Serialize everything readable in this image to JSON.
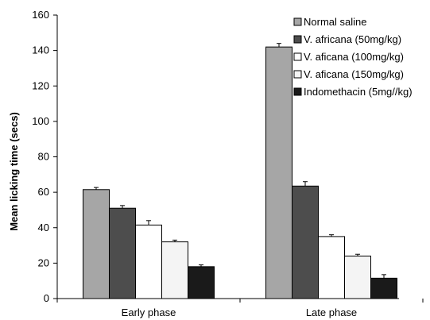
{
  "chart_data": {
    "type": "bar",
    "title": "",
    "xlabel": "",
    "ylabel": "Mean licking time (secs)",
    "ylim": [
      0,
      160
    ],
    "yticks": [
      0,
      20,
      40,
      60,
      80,
      100,
      120,
      140,
      160
    ],
    "categories": [
      "Early phase",
      "Late phase"
    ],
    "legend_position": "top-right",
    "grid": false,
    "series": [
      {
        "name": "Normal saline",
        "color": "#a6a6a6",
        "values": [
          61.5,
          142
        ],
        "errors": [
          1.2,
          2
        ]
      },
      {
        "name": "V. africana (50mg/kg)",
        "color": "#4d4d4d",
        "values": [
          51,
          63.5
        ],
        "errors": [
          1.5,
          2.5
        ]
      },
      {
        "name": "V. aficana (100mg/kg)",
        "color": "#ffffff",
        "values": [
          41.5,
          35
        ],
        "errors": [
          2.5,
          1
        ]
      },
      {
        "name": "V. aficana (150mg/kg)",
        "color": "#f4f4f4",
        "values": [
          32,
          24
        ],
        "errors": [
          1,
          1
        ]
      },
      {
        "name": "Indomethacin (5mg//kg)",
        "color": "#1a1a1a",
        "values": [
          18,
          11.5
        ],
        "errors": [
          1,
          2
        ]
      }
    ]
  }
}
